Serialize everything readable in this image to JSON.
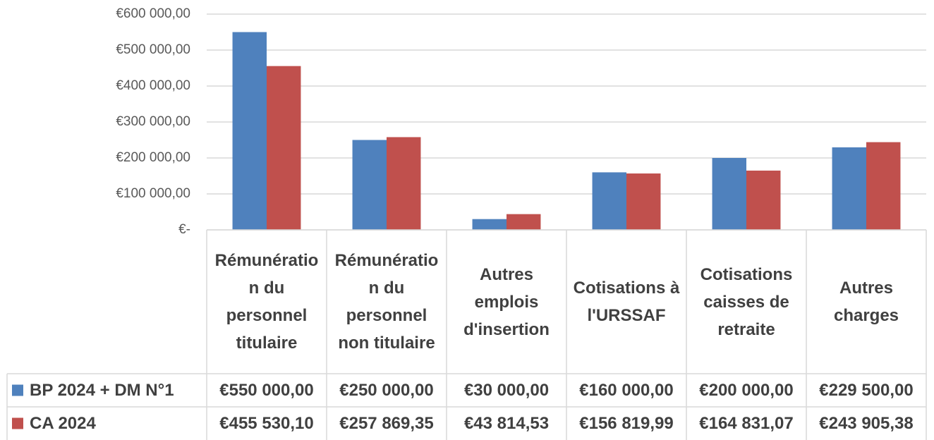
{
  "chart_data": {
    "type": "bar",
    "categories": [
      "Rémunération du personnel titulaire",
      "Rémunération du personnel non titulaire",
      "Autres emplois d'insertion",
      "Cotisations à l'URSSAF",
      "Cotisations caisses de retraite",
      "Autres charges"
    ],
    "series": [
      {
        "name": "BP 2024 + DM N°1",
        "color": "#4f81bd",
        "values": [
          550000,
          250000,
          30000,
          160000,
          200000,
          229500
        ],
        "value_labels": [
          "€550 000,00",
          "€250 000,00",
          "€30 000,00",
          "€160 000,00",
          "€200 000,00",
          "€229 500,00"
        ]
      },
      {
        "name": "CA 2024",
        "color": "#c0504d",
        "values": [
          455530.1,
          257869.35,
          43814.53,
          156819.99,
          164831.07,
          243905.38
        ],
        "value_labels": [
          "€455 530,10",
          "€257 869,35",
          "€43 814,53",
          "€156 819,99",
          "€164 831,07",
          "€243 905,38"
        ]
      }
    ],
    "ylim": [
      0,
      600000
    ],
    "yticks": [
      {
        "value": 0,
        "label": "€-"
      },
      {
        "value": 100000,
        "label": "€100 000,00"
      },
      {
        "value": 200000,
        "label": "€200 000,00"
      },
      {
        "value": 300000,
        "label": "€300 000,00"
      },
      {
        "value": 400000,
        "label": "€400 000,00"
      },
      {
        "value": 500000,
        "label": "€500 000,00"
      },
      {
        "value": 600000,
        "label": "€600 000,00"
      }
    ],
    "grid": true,
    "data_table": true
  }
}
